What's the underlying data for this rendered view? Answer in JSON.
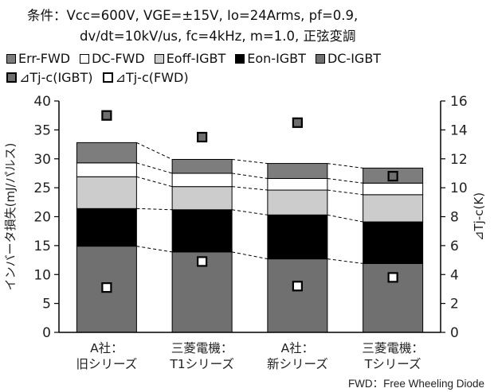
{
  "conditions": {
    "line1": "条件：Vcc=600V, VGE=±15V, Io=24Arms, pf=0.9,",
    "line2": "dv/dt=10kV/us, fc=4kHz, m=1.0, 正弦変調"
  },
  "legend_rows": [
    [
      {
        "label": "Err-FWD",
        "color": "#7d7d7d",
        "shape": "box"
      },
      {
        "label": "DC-FWD",
        "color": "#ffffff",
        "shape": "box"
      },
      {
        "label": "Eoff-IGBT",
        "color": "#cccccc",
        "shape": "box"
      },
      {
        "label": "Eon-IGBT",
        "color": "#000000",
        "shape": "box"
      },
      {
        "label": "DC-IGBT",
        "color": "#707070",
        "shape": "box"
      }
    ],
    [
      {
        "label": "⊿Tj-c(IGBT)",
        "color": "#6e6e6e",
        "shape": "marker"
      },
      {
        "label": "⊿Tj-c(FWD)",
        "color": "#ffffff",
        "shape": "marker"
      }
    ]
  ],
  "footnote": "FWD：Free Wheeling Diode",
  "chart_data": {
    "type": "bar",
    "stacked": true,
    "categories": [
      [
        "A社：",
        "旧シリーズ"
      ],
      [
        "三菱電機：",
        "T1シリーズ"
      ],
      [
        "A社：",
        "新シリーズ"
      ],
      [
        "三菱電機：",
        "Tシリーズ"
      ]
    ],
    "series": [
      {
        "name": "DC-IGBT",
        "color": "#707070",
        "values": [
          14.9,
          13.9,
          12.7,
          11.9
        ]
      },
      {
        "name": "Eon-IGBT",
        "color": "#000000",
        "values": [
          6.5,
          7.3,
          7.6,
          7.2
        ]
      },
      {
        "name": "Eoff-IGBT",
        "color": "#cccccc",
        "values": [
          5.5,
          4.0,
          4.3,
          4.7
        ]
      },
      {
        "name": "DC-FWD",
        "color": "#ffffff",
        "values": [
          2.4,
          2.3,
          2.0,
          2.0
        ]
      },
      {
        "name": "Err-FWD",
        "color": "#7d7d7d",
        "values": [
          3.5,
          2.4,
          2.6,
          2.6
        ]
      }
    ],
    "markers": [
      {
        "name": "⊿Tj-c(IGBT)",
        "axis": "right",
        "fill": "#6e6e6e",
        "values": [
          15.0,
          13.5,
          14.5,
          10.8
        ]
      },
      {
        "name": "⊿Tj-c(FWD)",
        "axis": "right",
        "fill": "#ffffff",
        "values": [
          3.1,
          4.9,
          3.2,
          3.8
        ]
      }
    ],
    "connector_lines": "dashed",
    "ylabel": "インバータ損失(mJ/パルス)",
    "ylim": [
      0,
      40
    ],
    "yticks": [
      0,
      5,
      10,
      15,
      20,
      25,
      30,
      35,
      40
    ],
    "y2label": "⊿Tj-c(K)",
    "y2lim": [
      0,
      16
    ],
    "y2ticks": [
      0,
      2,
      4,
      6,
      8,
      10,
      12,
      14,
      16
    ],
    "grid": false
  }
}
